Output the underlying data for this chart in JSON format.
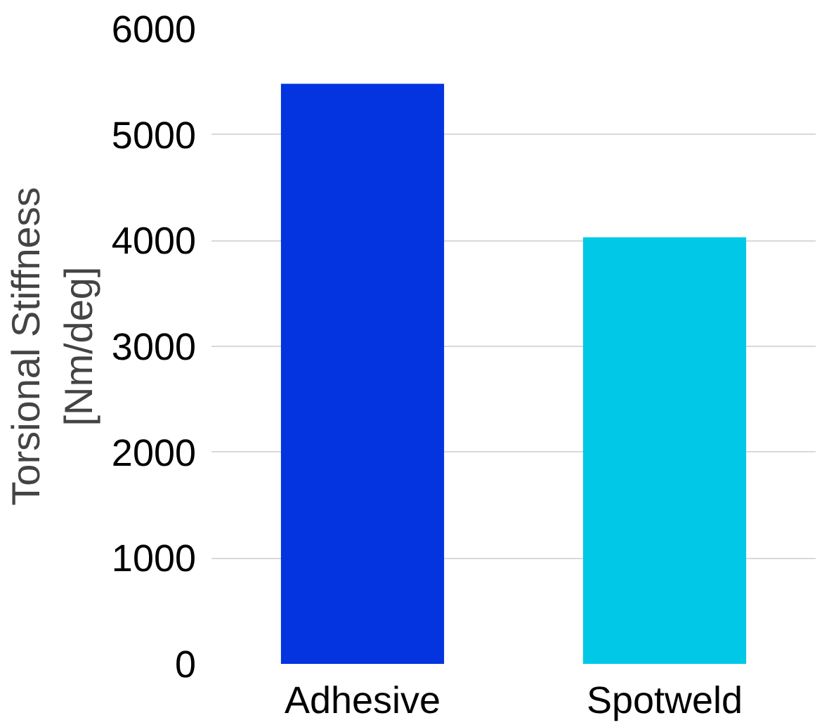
{
  "chart_data": {
    "type": "bar",
    "ylabel": "Torsional Stiffness\n[Nm/deg]",
    "categories": [
      "Adhesive",
      "Spotweld"
    ],
    "values": [
      5480,
      4030
    ],
    "colors": [
      "#0433e0",
      "#00c8e6"
    ],
    "ylim": [
      0,
      6000
    ],
    "yticks": [
      0,
      1000,
      2000,
      3000,
      4000,
      5000,
      6000
    ],
    "grid": "y"
  }
}
